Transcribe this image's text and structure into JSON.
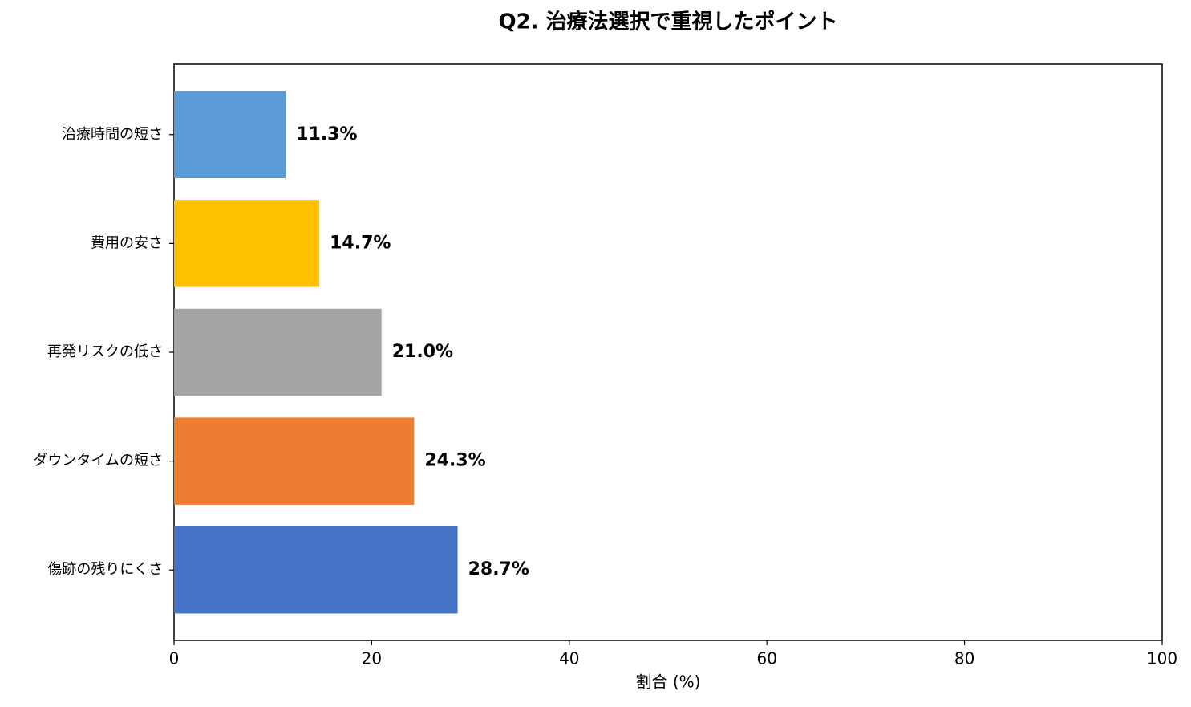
{
  "chart_data": {
    "type": "barh",
    "title": "Q2. 治療法選択で重視したポイント",
    "xlabel": "割合 (%)",
    "categories": [
      "治療時間の短さ",
      "費用の安さ",
      "再発リスクの低さ",
      "ダウンタイムの短さ",
      "傷跡の残りにくさ"
    ],
    "values": [
      11.3,
      14.7,
      21.0,
      24.3,
      28.7
    ],
    "value_labels": [
      "11.3%",
      "14.7%",
      "21.0%",
      "24.3%",
      "28.7%"
    ],
    "colors": [
      "#5b9bd5",
      "#ffc000",
      "#a5a5a5",
      "#ed7d31",
      "#4472c4"
    ],
    "xlim": [
      0,
      100
    ],
    "xticks": [
      0,
      20,
      40,
      60,
      80,
      100
    ]
  }
}
